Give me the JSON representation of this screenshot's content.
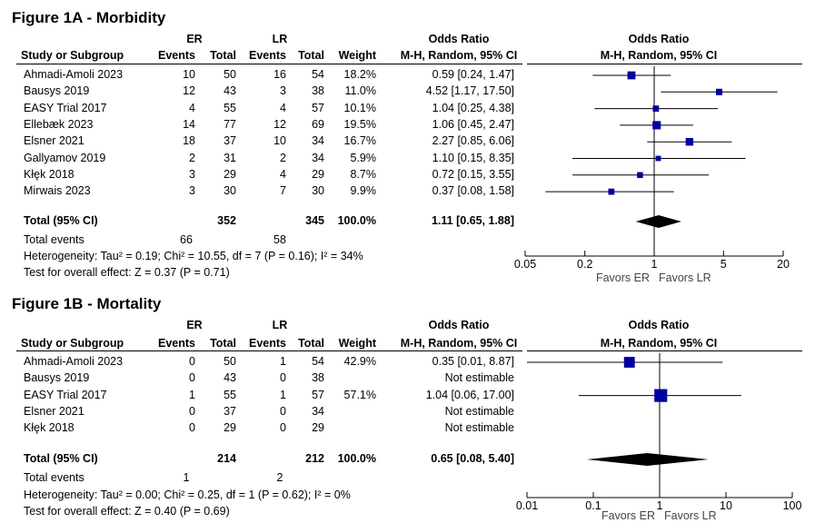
{
  "chart_data": [
    {
      "type": "forest",
      "title": "Figure 1A - Morbidity",
      "group_a": "ER",
      "group_b": "LR",
      "headers": {
        "study": "Study or Subgroup",
        "events": "Events",
        "total": "Total",
        "weight": "Weight",
        "or_title": "Odds Ratio",
        "or_method": "M-H, Random, 95% CI"
      },
      "studies": [
        {
          "name": "Ahmadi-Amoli 2023",
          "er_events": "10",
          "er_total": "50",
          "lr_events": "16",
          "lr_total": "54",
          "weight": "18.2%",
          "ci_text": "0.59 [0.24, 1.47]",
          "or": 0.59,
          "lo": 0.24,
          "hi": 1.47,
          "w": 18.2
        },
        {
          "name": "Bausys 2019",
          "er_events": "12",
          "er_total": "43",
          "lr_events": "3",
          "lr_total": "38",
          "weight": "11.0%",
          "ci_text": "4.52 [1.17, 17.50]",
          "or": 4.52,
          "lo": 1.17,
          "hi": 17.5,
          "w": 11.0
        },
        {
          "name": "EASY Trial 2017",
          "er_events": "4",
          "er_total": "55",
          "lr_events": "4",
          "lr_total": "57",
          "weight": "10.1%",
          "ci_text": "1.04 [0.25, 4.38]",
          "or": 1.04,
          "lo": 0.25,
          "hi": 4.38,
          "w": 10.1
        },
        {
          "name": "Ellebæk 2023",
          "er_events": "14",
          "er_total": "77",
          "lr_events": "12",
          "lr_total": "69",
          "weight": "19.5%",
          "ci_text": "1.06 [0.45, 2.47]",
          "or": 1.06,
          "lo": 0.45,
          "hi": 2.47,
          "w": 19.5
        },
        {
          "name": "Elsner 2021",
          "er_events": "18",
          "er_total": "37",
          "lr_events": "10",
          "lr_total": "34",
          "weight": "16.7%",
          "ci_text": "2.27 [0.85, 6.06]",
          "or": 2.27,
          "lo": 0.85,
          "hi": 6.06,
          "w": 16.7
        },
        {
          "name": "Gallyamov 2019",
          "er_events": "2",
          "er_total": "31",
          "lr_events": "2",
          "lr_total": "34",
          "weight": "5.9%",
          "ci_text": "1.10 [0.15, 8.35]",
          "or": 1.1,
          "lo": 0.15,
          "hi": 8.35,
          "w": 5.9
        },
        {
          "name": "Kłęk 2018",
          "er_events": "3",
          "er_total": "29",
          "lr_events": "4",
          "lr_total": "29",
          "weight": "8.7%",
          "ci_text": "0.72 [0.15, 3.55]",
          "or": 0.72,
          "lo": 0.15,
          "hi": 3.55,
          "w": 8.7
        },
        {
          "name": "Mirwais 2023",
          "er_events": "3",
          "er_total": "30",
          "lr_events": "7",
          "lr_total": "30",
          "weight": "9.9%",
          "ci_text": "0.37 [0.08, 1.58]",
          "or": 0.37,
          "lo": 0.08,
          "hi": 1.58,
          "w": 9.9
        }
      ],
      "total": {
        "label": "Total (95% CI)",
        "er_total": "352",
        "lr_total": "345",
        "weight": "100.0%",
        "ci_text": "1.11 [0.65, 1.88]",
        "or": 1.11,
        "lo": 0.65,
        "hi": 1.88
      },
      "total_events": {
        "label": "Total events",
        "er": "66",
        "lr": "58"
      },
      "heterogeneity": "Heterogeneity: Tau² = 0.19; Chi² = 10.55, df = 7 (P = 0.16); I² = 34%",
      "overall_effect": "Test for overall effect: Z = 0.37 (P = 0.71)",
      "axis": {
        "min": 0.05,
        "max": 20,
        "scale": "log",
        "ticks": [
          0.05,
          0.2,
          1,
          5,
          20
        ],
        "tick_labels": [
          "0.05",
          "0.2",
          "1",
          "5",
          "20"
        ]
      },
      "favors_left": "Favors ER",
      "favors_right": "Favors LR",
      "marker_color": "#0000a0"
    },
    {
      "type": "forest",
      "title": "Figure 1B - Mortality",
      "group_a": "ER",
      "group_b": "LR",
      "headers": {
        "study": "Study or Subgroup",
        "events": "Events",
        "total": "Total",
        "weight": "Weight",
        "or_title": "Odds Ratio",
        "or_method": "M-H, Random, 95% CI"
      },
      "studies": [
        {
          "name": "Ahmadi-Amoli 2023",
          "er_events": "0",
          "er_total": "50",
          "lr_events": "1",
          "lr_total": "54",
          "weight": "42.9%",
          "ci_text": "0.35 [0.01, 8.87]",
          "or": 0.35,
          "lo": 0.01,
          "hi": 8.87,
          "w": 42.9
        },
        {
          "name": "Bausys 2019",
          "er_events": "0",
          "er_total": "43",
          "lr_events": "0",
          "lr_total": "38",
          "weight": "",
          "ci_text": "Not estimable",
          "or": null,
          "lo": null,
          "hi": null,
          "w": null
        },
        {
          "name": "EASY Trial 2017",
          "er_events": "1",
          "er_total": "55",
          "lr_events": "1",
          "lr_total": "57",
          "weight": "57.1%",
          "ci_text": "1.04 [0.06, 17.00]",
          "or": 1.04,
          "lo": 0.06,
          "hi": 17.0,
          "w": 57.1
        },
        {
          "name": "Elsner 2021",
          "er_events": "0",
          "er_total": "37",
          "lr_events": "0",
          "lr_total": "34",
          "weight": "",
          "ci_text": "Not estimable",
          "or": null,
          "lo": null,
          "hi": null,
          "w": null
        },
        {
          "name": "Kłęk 2018",
          "er_events": "0",
          "er_total": "29",
          "lr_events": "0",
          "lr_total": "29",
          "weight": "",
          "ci_text": "Not estimable",
          "or": null,
          "lo": null,
          "hi": null,
          "w": null
        }
      ],
      "total": {
        "label": "Total (95% CI)",
        "er_total": "214",
        "lr_total": "212",
        "weight": "100.0%",
        "ci_text": "0.65 [0.08, 5.40]",
        "or": 0.65,
        "lo": 0.08,
        "hi": 5.4
      },
      "total_events": {
        "label": "Total events",
        "er": "1",
        "lr": "2"
      },
      "heterogeneity": "Heterogeneity: Tau² = 0.00; Chi² = 0.25, df = 1 (P = 0.62); I² = 0%",
      "overall_effect": "Test for overall effect: Z = 0.40 (P = 0.69)",
      "axis": {
        "min": 0.01,
        "max": 100,
        "scale": "log",
        "ticks": [
          0.01,
          0.1,
          1,
          10,
          100
        ],
        "tick_labels": [
          "0.01",
          "0.1",
          "1",
          "10",
          "100"
        ]
      },
      "favors_left": "Favors ER",
      "favors_right": "Favors LR",
      "marker_color": "#0000a0"
    }
  ]
}
